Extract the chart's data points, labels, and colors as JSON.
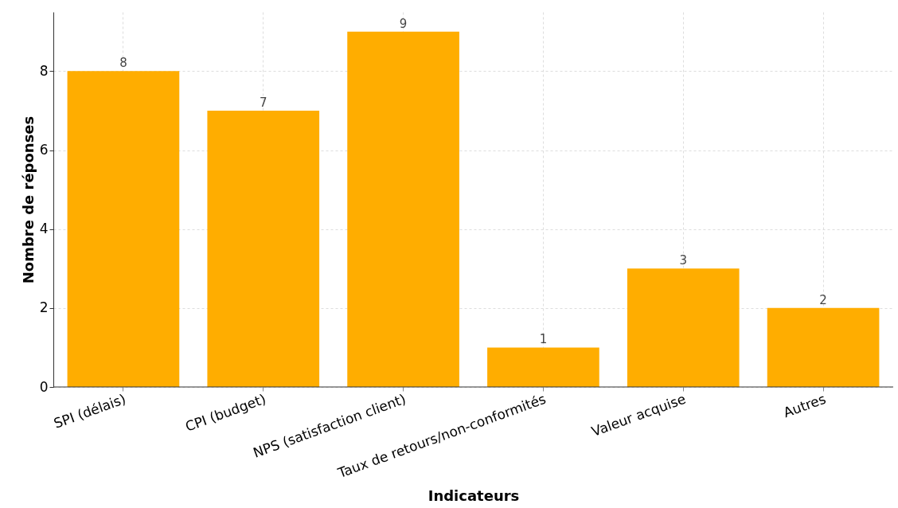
{
  "chart_data": {
    "type": "bar",
    "xlabel": "Indicateurs",
    "ylabel": "Nombre de réponses",
    "categories": [
      "SPI (délais)",
      "CPI (budget)",
      "NPS (satisfaction client)",
      "Taux de retours/non-conformités",
      "Valeur acquise",
      "Autres"
    ],
    "values": [
      8,
      7,
      9,
      1,
      3,
      2
    ],
    "color": "#ffad00",
    "ylim": [
      0,
      9.5
    ],
    "yticks": [
      0,
      2,
      4,
      6,
      8
    ],
    "grid": true,
    "data_labels": true
  }
}
